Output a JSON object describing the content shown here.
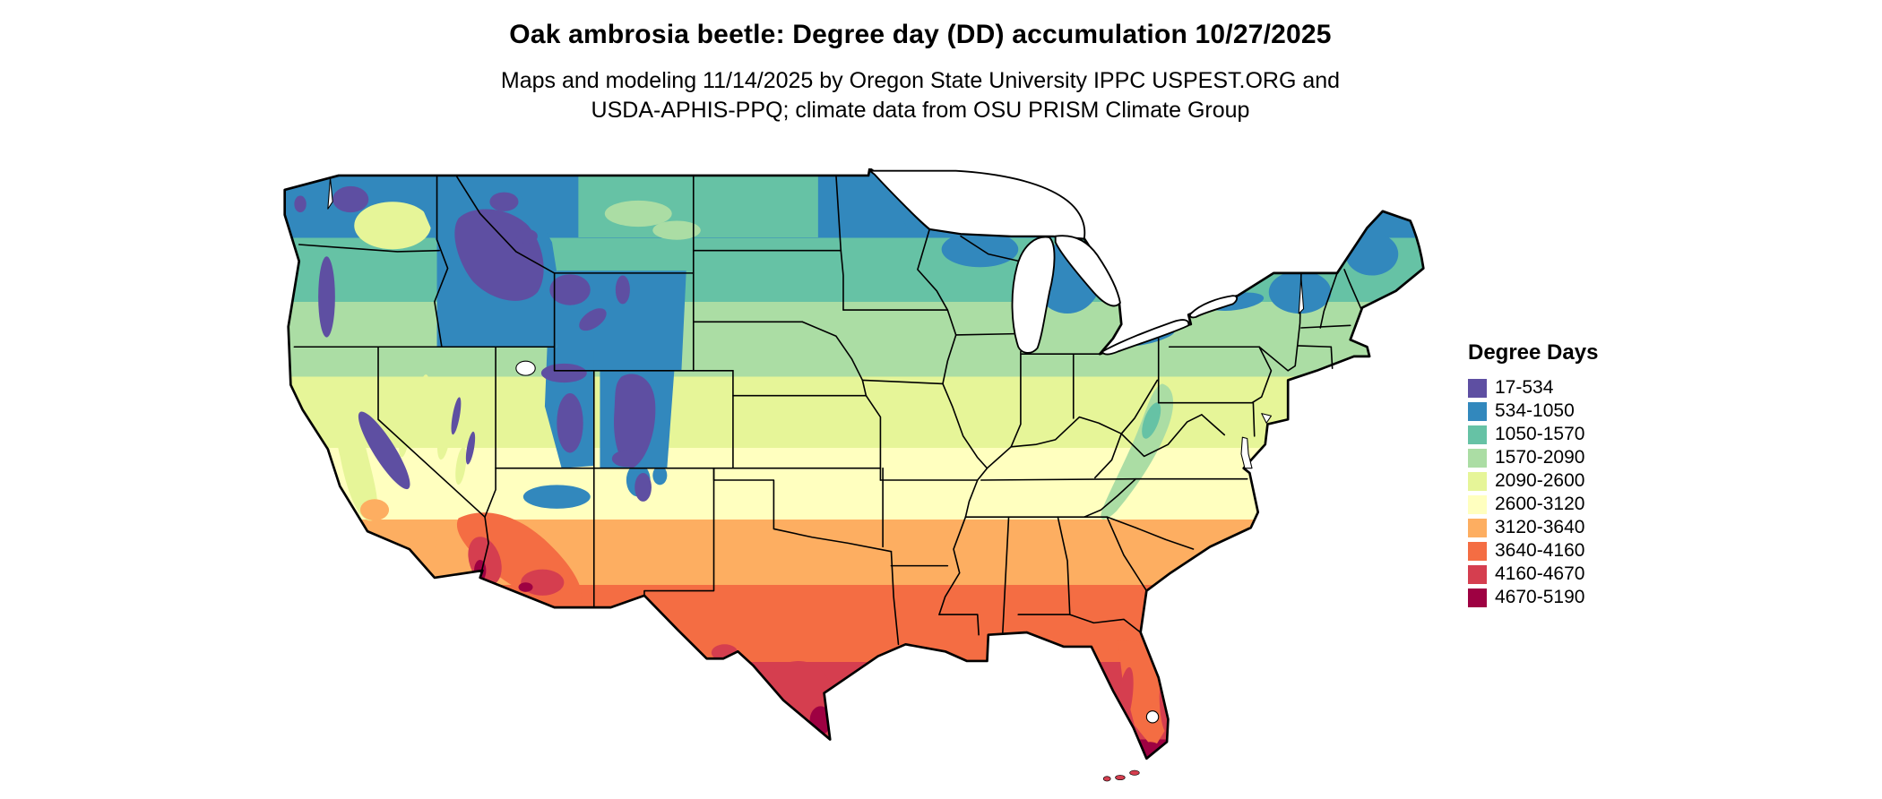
{
  "title": "Oak ambrosia beetle: Degree day (DD) accumulation 10/27/2025",
  "subtitle": {
    "line1": "Maps and modeling 11/14/2025 by Oregon State University IPPC USPEST.ORG and",
    "line2": "USDA-APHIS-PPQ; climate data from OSU PRISM Climate Group"
  },
  "legend": {
    "title": "Degree Days",
    "entries": [
      {
        "label": "17-534",
        "color": "#5e4fa2"
      },
      {
        "label": "534-1050",
        "color": "#3288bd"
      },
      {
        "label": "1050-1570",
        "color": "#66c2a5"
      },
      {
        "label": "1570-2090",
        "color": "#abdda4"
      },
      {
        "label": "2090-2600",
        "color": "#e6f598"
      },
      {
        "label": "2600-3120",
        "color": "#ffffbf"
      },
      {
        "label": "3120-3640",
        "color": "#fdae61"
      },
      {
        "label": "3640-4160",
        "color": "#f46d43"
      },
      {
        "label": "4160-4670",
        "color": "#d53e4f"
      },
      {
        "label": "4670-5190",
        "color": "#9e0142"
      }
    ]
  },
  "map": {
    "region": "Continental United States",
    "kind": "degree-day accumulation raster map"
  }
}
